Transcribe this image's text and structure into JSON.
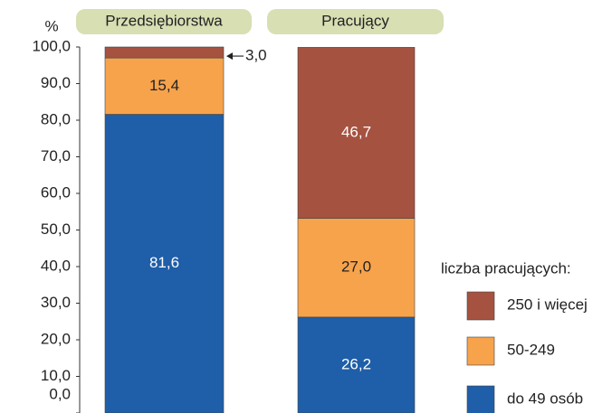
{
  "chart_data": {
    "type": "stacked_bar",
    "y_label": "%",
    "categories": [
      "Przedsiębiorstwa",
      "Pracujący"
    ],
    "series": [
      {
        "name": "do 49 osób",
        "color": "#1f5ea8",
        "values": [
          81.6,
          26.2
        ],
        "value_labels": [
          "81,6",
          "26,2"
        ]
      },
      {
        "name": "50-249",
        "color": "#f7a34b",
        "values": [
          15.4,
          27.0
        ],
        "value_labels": [
          "15,4",
          "27,0"
        ]
      },
      {
        "name": "250 i więcej",
        "color": "#a65240",
        "values": [
          3.0,
          46.7
        ],
        "value_labels": [
          "3,0",
          "46,7"
        ]
      }
    ],
    "legend_title": "liczba pracujących:",
    "legend": "right",
    "ylim": [
      0,
      100
    ],
    "yticks": [
      {
        "value": 0,
        "label": "0,0"
      },
      {
        "value": 10,
        "label": "10,0"
      },
      {
        "value": 20,
        "label": "20,0"
      },
      {
        "value": 30,
        "label": "30,0"
      },
      {
        "value": 40,
        "label": "40,0"
      },
      {
        "value": 50,
        "label": "50,0"
      },
      {
        "value": 60,
        "label": "60,0"
      },
      {
        "value": 70,
        "label": "70,0"
      },
      {
        "value": 80,
        "label": "80,0"
      },
      {
        "value": 90,
        "label": "90,0"
      },
      {
        "value": 100,
        "label": "100,0"
      }
    ]
  }
}
